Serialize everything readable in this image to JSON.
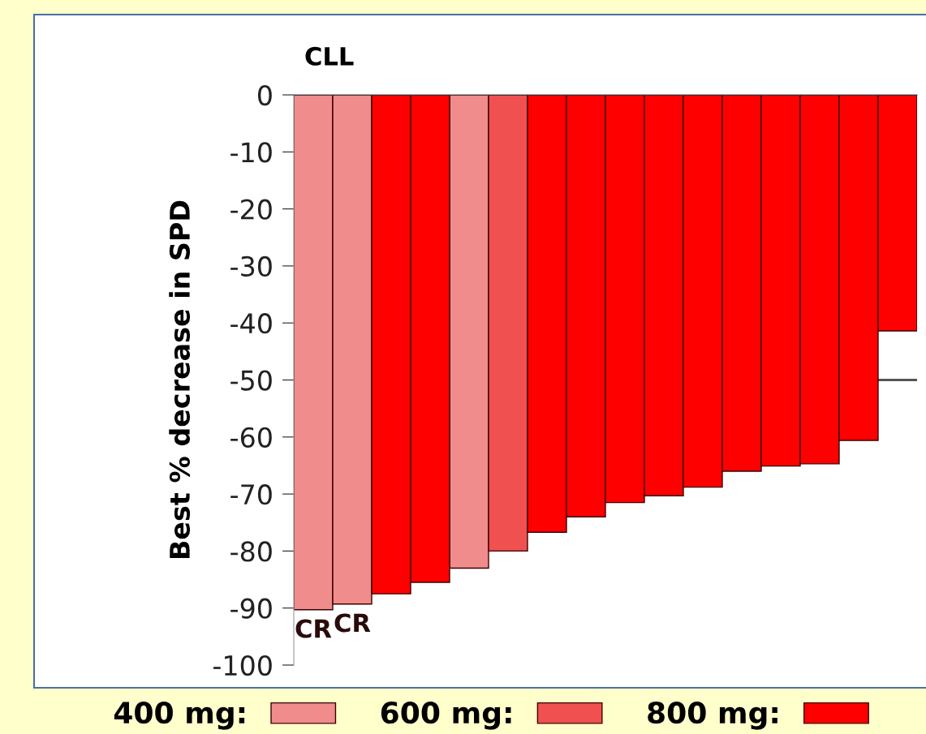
{
  "chart_data": {
    "type": "bar",
    "subtitle": "CLL",
    "ylabel": "Best % decrease in SPD",
    "categories": [
      null,
      null,
      null,
      null,
      null,
      null,
      null,
      null,
      null,
      null,
      null,
      null,
      null,
      null,
      null,
      null
    ],
    "series": [
      {
        "name": "400 mg:",
        "color": "#f08c8c",
        "values": [
          -90.3,
          -89.3,
          null,
          null,
          -83,
          null,
          null,
          null,
          null,
          null,
          null,
          null,
          null,
          null,
          null,
          null
        ],
        "value_labels": [
          "CR",
          "CR",
          null,
          null,
          null,
          null,
          null,
          null,
          null,
          null,
          null,
          null,
          null,
          null,
          null,
          null
        ]
      },
      {
        "name": "600 mg:",
        "color": "#f05050",
        "values": [
          null,
          null,
          null,
          null,
          null,
          -80,
          null,
          null,
          null,
          null,
          null,
          null,
          null,
          null,
          null,
          null
        ]
      },
      {
        "name": "800 mg:",
        "color": "#ff0000",
        "values": [
          null,
          null,
          -87.5,
          -85.5,
          null,
          null,
          -76.7,
          -74,
          -71.5,
          -70.3,
          -68.8,
          -66,
          -65.1,
          -64.7,
          -60.6,
          -41.4
        ]
      }
    ],
    "ylim": [
      -100,
      0
    ],
    "yticks": [
      0,
      -10,
      -20,
      -30,
      -40,
      -50,
      -60,
      -70,
      -80,
      -90,
      -100
    ],
    "ref_lines": [
      {
        "axis": "y",
        "value": -50,
        "color": "#555555"
      }
    ],
    "grid": false,
    "legend": "bottom"
  }
}
